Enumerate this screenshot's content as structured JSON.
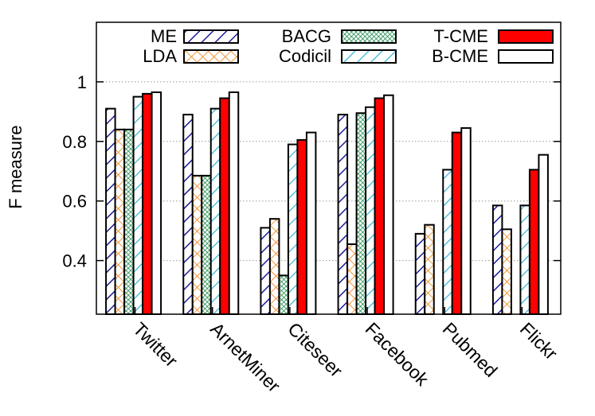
{
  "chart_data": {
    "type": "bar",
    "title": "",
    "xlabel": "",
    "ylabel": "F measure",
    "ylim": [
      0.22,
      1.2
    ],
    "yticks": [
      0.4,
      0.6,
      0.8,
      1
    ],
    "ytick_labels": [
      "0.4",
      "0.6",
      "0.8",
      "1"
    ],
    "grid": "y-dotted",
    "legend_position": "top",
    "categories": [
      "Twitter",
      "ArnetMiner",
      "Citeseer",
      "Facebook",
      "Pubmed",
      "Flickr"
    ],
    "series": [
      {
        "name": "ME",
        "pattern": "diag-right",
        "color": "#1c1c9a",
        "values": [
          0.91,
          0.89,
          0.51,
          0.89,
          0.49,
          0.585
        ]
      },
      {
        "name": "LDA",
        "pattern": "crosshatch",
        "color": "#f08a24",
        "values": [
          0.84,
          0.685,
          0.54,
          0.455,
          0.52,
          0.505
        ]
      },
      {
        "name": "BACG",
        "pattern": "dense-mesh",
        "color": "#1f8a4c",
        "values": [
          0.84,
          0.685,
          0.35,
          0.895,
          null,
          null
        ]
      },
      {
        "name": "Codicil",
        "pattern": "diag-right",
        "color": "#35b6d8",
        "values": [
          0.95,
          0.91,
          0.79,
          0.915,
          0.705,
          0.585
        ]
      },
      {
        "name": "T-CME",
        "pattern": "solid",
        "color": "#ff0000",
        "values": [
          0.96,
          0.945,
          0.805,
          0.945,
          0.83,
          0.705
        ]
      },
      {
        "name": "B-CME",
        "pattern": "solid",
        "color": "#ffffff",
        "values": [
          0.965,
          0.965,
          0.83,
          0.955,
          0.845,
          0.755
        ]
      }
    ]
  }
}
